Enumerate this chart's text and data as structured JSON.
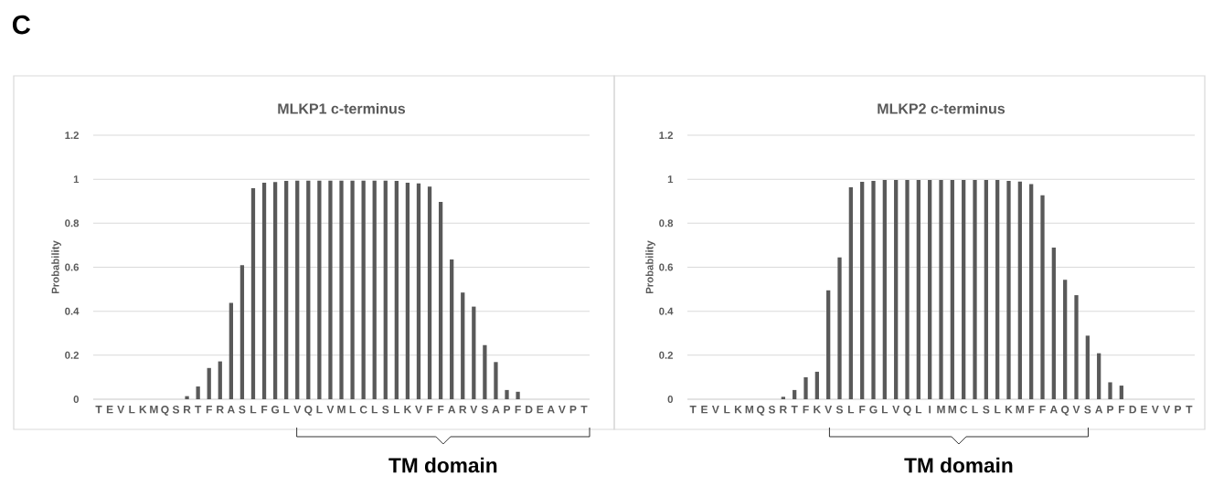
{
  "chart_data": [
    {
      "type": "bar",
      "title": "MLKP1 c-terminus",
      "ylabel": "Probability",
      "categories": [
        "T",
        "E",
        "V",
        "L",
        "K",
        "M",
        "Q",
        "S",
        "R",
        "T",
        "F",
        "R",
        "A",
        "S",
        "L",
        "F",
        "G",
        "L",
        "V",
        "Q",
        "L",
        "V",
        "M",
        "L",
        "C",
        "L",
        "S",
        "L",
        "K",
        "V",
        "F",
        "F",
        "A",
        "R",
        "V",
        "S",
        "A",
        "P",
        "F",
        "D",
        "E",
        "A",
        "V",
        "P",
        "T"
      ],
      "values": [
        0,
        0,
        0,
        0,
        0,
        0,
        0,
        0,
        0.014,
        0.058,
        0.142,
        0.172,
        0.438,
        0.609,
        0.959,
        0.984,
        0.987,
        0.992,
        0.993,
        0.993,
        0.993,
        0.993,
        0.993,
        0.993,
        0.993,
        0.993,
        0.993,
        0.992,
        0.984,
        0.981,
        0.966,
        0.897,
        0.635,
        0.485,
        0.421,
        0.246,
        0.169,
        0.042,
        0.034,
        0,
        0,
        0,
        0,
        0,
        0
      ],
      "color": "#595959",
      "ylim": [
        0,
        1.2
      ],
      "yticks": [
        0,
        0.2,
        0.4,
        0.6,
        0.8,
        1,
        1.2
      ],
      "grid": "y",
      "annotations": [
        "TM domain",
        "C"
      ]
    },
    {
      "type": "bar",
      "title": "MLKP2 c-terminus",
      "ylabel": "Probability",
      "categories": [
        "T",
        "E",
        "V",
        "L",
        "K",
        "M",
        "Q",
        "S",
        "R",
        "T",
        "F",
        "K",
        "V",
        "S",
        "L",
        "F",
        "G",
        "L",
        "V",
        "Q",
        "L",
        "I",
        "M",
        "M",
        "C",
        "L",
        "S",
        "L",
        "K",
        "M",
        "F",
        "F",
        "A",
        "Q",
        "V",
        "S",
        "A",
        "P",
        "F",
        "D",
        "E",
        "V",
        "V",
        "P",
        "T"
      ],
      "values": [
        0,
        0,
        0,
        0,
        0,
        0,
        0,
        0,
        0.011,
        0.042,
        0.1,
        0.125,
        0.495,
        0.645,
        0.963,
        0.988,
        0.992,
        0.997,
        0.997,
        0.997,
        0.997,
        0.997,
        0.997,
        0.997,
        0.997,
        0.997,
        0.997,
        0.997,
        0.992,
        0.989,
        0.978,
        0.927,
        0.689,
        0.543,
        0.473,
        0.289,
        0.209,
        0.077,
        0.062,
        0,
        0,
        0,
        0,
        0,
        0
      ],
      "color": "#595959",
      "ylim": [
        0,
        1.2
      ],
      "yticks": [
        0,
        0.2,
        0.4,
        0.6,
        0.8,
        1,
        1.2
      ],
      "grid": "y",
      "annotations": [
        "TM domain"
      ]
    }
  ]
}
